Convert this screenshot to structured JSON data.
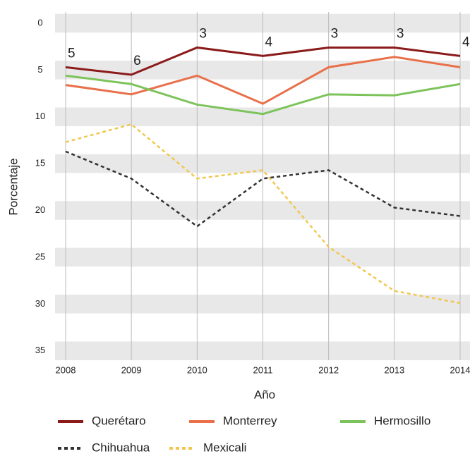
{
  "chart_data": {
    "type": "line",
    "x": [
      2008,
      2009,
      2010,
      2011,
      2012,
      2013,
      2014
    ],
    "xlabel": "Año",
    "ylabel": "Porcentaje",
    "xlim": [
      2008,
      2014
    ],
    "xticks": [
      2008,
      2009,
      2010,
      2011,
      2012,
      2013,
      2014
    ],
    "ylim": [
      -1.2,
      36
    ],
    "yticks": [
      0,
      5,
      10,
      15,
      20,
      25,
      30,
      35
    ],
    "y_inverted": true,
    "grid": true,
    "series": [
      {
        "name": "Querétaro",
        "color": "#8b1a1a",
        "dash": false,
        "values": [
          4.7,
          5.5,
          2.6,
          3.5,
          2.6,
          2.6,
          3.5
        ],
        "value_labels": [
          "5",
          "6",
          "3",
          "4",
          "3",
          "3",
          "4"
        ]
      },
      {
        "name": "Monterrey",
        "color": "#e8704a",
        "dash": false,
        "values": [
          6.6,
          7.6,
          5.6,
          8.6,
          4.7,
          3.6,
          4.7
        ]
      },
      {
        "name": "Hermosillo",
        "color": "#7dc35b",
        "dash": false,
        "values": [
          5.6,
          6.5,
          8.7,
          9.7,
          7.6,
          7.7,
          6.5
        ]
      },
      {
        "name": "Chihuahua",
        "color": "#333333",
        "dash": true,
        "values": [
          13.7,
          16.6,
          21.7,
          16.6,
          15.7,
          19.7,
          20.6
        ]
      },
      {
        "name": "Mexicali",
        "color": "#f0c850",
        "dash": true,
        "values": [
          12.7,
          10.8,
          16.6,
          15.7,
          23.9,
          28.6,
          29.9
        ]
      }
    ]
  }
}
